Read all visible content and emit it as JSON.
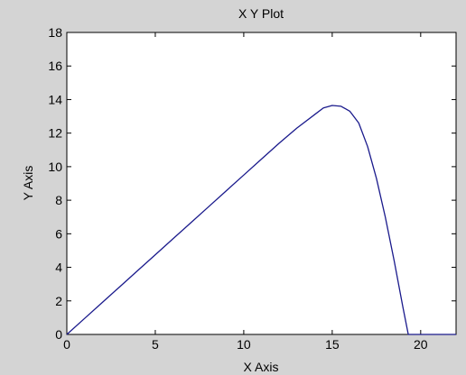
{
  "chart_data": {
    "type": "line",
    "title": "X Y Plot",
    "xlabel": "X Axis",
    "ylabel": "Y Axis",
    "xlim": [
      0,
      22
    ],
    "ylim": [
      0,
      18
    ],
    "xticks": [
      0,
      5,
      10,
      15,
      20
    ],
    "yticks": [
      0,
      2,
      4,
      6,
      8,
      10,
      12,
      14,
      16,
      18
    ],
    "grid": false,
    "series": [
      {
        "color": "#1a1a8c",
        "x": [
          0,
          1,
          2,
          3,
          4,
          5,
          6,
          7,
          8,
          9,
          10,
          11,
          12,
          13,
          14,
          14.5,
          15,
          15.5,
          16,
          16.5,
          17,
          17.5,
          18,
          18.5,
          19,
          19.3,
          19.5,
          20,
          21,
          22
        ],
        "y": [
          0,
          0.95,
          1.9,
          2.85,
          3.8,
          4.75,
          5.7,
          6.65,
          7.6,
          8.55,
          9.5,
          10.45,
          11.4,
          12.3,
          13.1,
          13.5,
          13.65,
          13.6,
          13.3,
          12.6,
          11.2,
          9.3,
          7.0,
          4.4,
          1.6,
          0,
          0,
          0,
          0,
          0
        ]
      }
    ]
  }
}
